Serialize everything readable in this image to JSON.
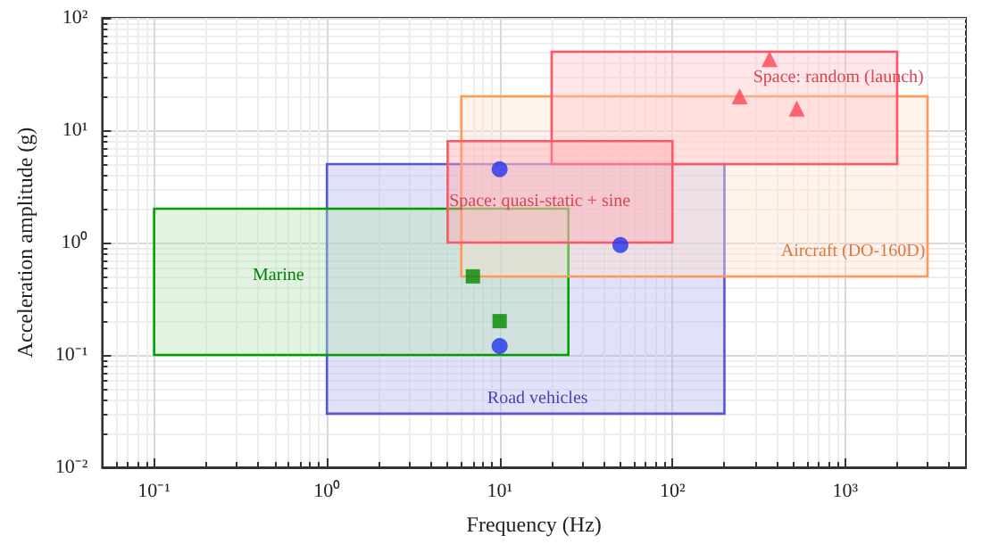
{
  "chart_data": {
    "type": "scatter",
    "xlabel": "Frequency (Hz)",
    "ylabel": "Acceleration amplitude (g)",
    "log": "xy",
    "grid": true,
    "legend": false,
    "xlim": [
      0.05,
      5000
    ],
    "ylim": [
      0.01,
      100
    ],
    "xticks": [
      {
        "value": 0.1,
        "label": "10⁻¹"
      },
      {
        "value": 1,
        "label": "10⁰"
      },
      {
        "value": 10,
        "label": "10¹"
      },
      {
        "value": 100,
        "label": "10²"
      },
      {
        "value": 1000,
        "label": "10³"
      }
    ],
    "yticks": [
      {
        "value": 0.01,
        "label": "10⁻²"
      },
      {
        "value": 0.1,
        "label": "10⁻¹"
      },
      {
        "value": 1,
        "label": "10⁰"
      },
      {
        "value": 10,
        "label": "10¹"
      },
      {
        "value": 100,
        "label": "10²"
      }
    ],
    "series": [
      {
        "type": "area",
        "name": "Road vehicles",
        "color": "#5555dd",
        "x": [
          1,
          200,
          200,
          1,
          1
        ],
        "values": [
          0.03,
          0.03,
          5,
          5,
          0.03
        ]
      },
      {
        "type": "area",
        "name": "Marine",
        "color": "#00a000",
        "x": [
          0.1,
          25,
          25,
          0.1,
          0.1
        ],
        "values": [
          0.1,
          0.1,
          2,
          2,
          0.1
        ]
      },
      {
        "type": "area",
        "name": "Aircraft (DO-160D)",
        "color": "#ff9955",
        "x": [
          6,
          3000,
          3000,
          6,
          6
        ],
        "values": [
          0.5,
          0.5,
          20,
          20,
          0.5
        ]
      },
      {
        "type": "area",
        "name": "Space: random (launch)",
        "color": "#ff5566",
        "x": [
          20,
          2000,
          2000,
          20,
          20
        ],
        "values": [
          5,
          5,
          50,
          50,
          5
        ]
      },
      {
        "type": "area",
        "name": "Space: quasi-static + sine",
        "color": "#ff5566",
        "x": [
          5,
          100,
          100,
          5,
          5
        ],
        "values": [
          1,
          1,
          8,
          8,
          1
        ]
      },
      {
        "type": "scatter",
        "marker": "circle",
        "color": "#2233ee",
        "x": [
          10,
          50,
          10
        ],
        "values": [
          4.5,
          0.95,
          0.12
        ]
      },
      {
        "type": "scatter",
        "marker": "square",
        "color": "#008800",
        "x": [
          7,
          10
        ],
        "values": [
          0.5,
          0.2
        ]
      },
      {
        "type": "scatter",
        "marker": "triangle",
        "color": "#ff4455",
        "x": [
          365,
          245,
          525
        ],
        "values": [
          43,
          20,
          15.6
        ]
      }
    ]
  }
}
